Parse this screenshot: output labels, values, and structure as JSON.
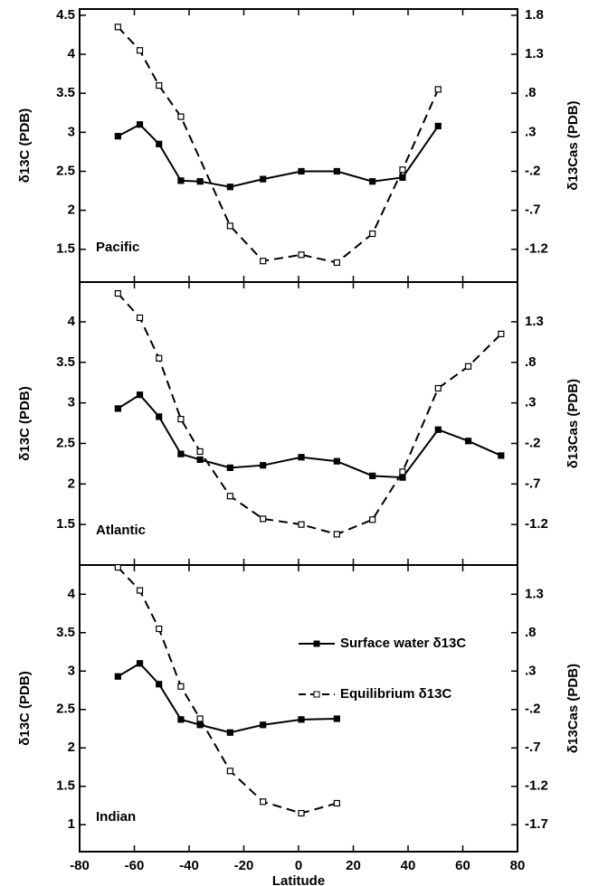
{
  "chart_data": [
    {
      "type": "line",
      "annotation": "Pacific",
      "ylabel": "δ13C (PDB)",
      "y2label": "δ13Cas (PDB)",
      "xlim": [
        -80,
        80
      ],
      "ylim": [
        1.08,
        4.58
      ],
      "yticks": [
        1.5,
        2,
        2.5,
        3,
        3.5,
        4,
        4.5
      ],
      "y2lim": [
        -1.62,
        1.88
      ],
      "y2ticks": [
        {
          "value": -1.2,
          "label": "-1.2"
        },
        {
          "value": -0.7,
          "label": "-.7"
        },
        {
          "value": -0.2,
          "label": "-.2"
        },
        {
          "value": 0.3,
          "label": ".3"
        },
        {
          "value": 0.8,
          "label": ".8"
        },
        1.3,
        1.8
      ],
      "series": [
        {
          "color": "#000000",
          "x": [
            -66,
            -58,
            -51,
            -43,
            -36,
            -25,
            -13,
            1,
            14,
            27,
            38,
            51
          ],
          "values": [
            2.95,
            3.1,
            2.85,
            2.38,
            2.37,
            2.3,
            2.4,
            2.5,
            2.5,
            2.37,
            2.42,
            3.08
          ]
        },
        {
          "color": "#000000",
          "x": [
            -66,
            -58,
            -51,
            -43,
            -25,
            -13,
            1,
            14,
            27,
            38,
            51
          ],
          "values": [
            4.35,
            4.05,
            3.6,
            3.2,
            1.8,
            1.35,
            1.43,
            1.33,
            1.7,
            2.52,
            3.55
          ]
        }
      ]
    },
    {
      "type": "line",
      "annotation": "Atlantic",
      "ylabel": "δ13C (PDB)",
      "y2label": "δ13Cas (PDB)",
      "xlim": [
        -80,
        80
      ],
      "ylim": [
        1.0,
        4.49
      ],
      "yticks": [
        1.5,
        2,
        2.5,
        3,
        3.5,
        4
      ],
      "y2lim": [
        -1.7,
        1.79
      ],
      "y2ticks": [
        {
          "value": -1.2,
          "label": "-1.2"
        },
        {
          "value": -0.7,
          "label": "-.7"
        },
        {
          "value": -0.2,
          "label": "-.2"
        },
        {
          "value": 0.3,
          "label": ".3"
        },
        {
          "value": 0.8,
          "label": ".8"
        },
        1.3
      ],
      "series": [
        {
          "color": "#000000",
          "x": [
            -66,
            -58,
            -51,
            -43,
            -36,
            -25,
            -13,
            1,
            14,
            27,
            38,
            51,
            62,
            74
          ],
          "values": [
            2.93,
            3.1,
            2.83,
            2.37,
            2.3,
            2.2,
            2.23,
            2.33,
            2.28,
            2.1,
            2.08,
            2.67,
            2.53,
            2.35
          ]
        },
        {
          "color": "#000000",
          "x": [
            -66,
            -58,
            -51,
            -43,
            -36,
            -25,
            -13,
            1,
            14,
            27,
            38,
            51,
            62,
            74
          ],
          "values": [
            4.35,
            4.05,
            3.55,
            2.8,
            2.4,
            1.85,
            1.57,
            1.5,
            1.38,
            1.56,
            2.15,
            3.18,
            3.45,
            3.85
          ]
        }
      ]
    },
    {
      "type": "line",
      "annotation": "Indian",
      "ylabel": "δ13C (PDB)",
      "y2label": "δ13Cas (PDB)",
      "xlabel": "Latitude",
      "xlim": [
        -80,
        80
      ],
      "xticks": [
        -80,
        -60,
        -40,
        -20,
        0,
        20,
        40,
        60,
        80
      ],
      "ylim": [
        0.65,
        4.38
      ],
      "yticks": [
        1,
        1.5,
        2,
        2.5,
        3,
        3.5,
        4
      ],
      "y2lim": [
        -2.05,
        1.68
      ],
      "y2ticks": [
        {
          "value": -1.7,
          "label": "-1.7"
        },
        {
          "value": -1.2,
          "label": "-1.2"
        },
        {
          "value": -0.7,
          "label": "-.7"
        },
        {
          "value": -0.2,
          "label": "-.2"
        },
        {
          "value": 0.3,
          "label": ".3"
        },
        {
          "value": 0.8,
          "label": ".8"
        },
        1.3
      ],
      "series": [
        {
          "name": "Surface water δ13C",
          "color": "#000000",
          "x": [
            -66,
            -58,
            -51,
            -43,
            -36,
            -25,
            -13,
            1,
            14
          ],
          "values": [
            2.93,
            3.1,
            2.83,
            2.37,
            2.3,
            2.2,
            2.3,
            2.37,
            2.38
          ]
        },
        {
          "name": "Equilibrium δ13C",
          "color": "#000000",
          "x": [
            -66,
            -58,
            -51,
            -43,
            -36,
            -25,
            -13,
            1,
            14
          ],
          "values": [
            4.35,
            4.05,
            3.55,
            2.8,
            2.38,
            1.7,
            1.3,
            1.15,
            1.28
          ]
        }
      ]
    }
  ]
}
